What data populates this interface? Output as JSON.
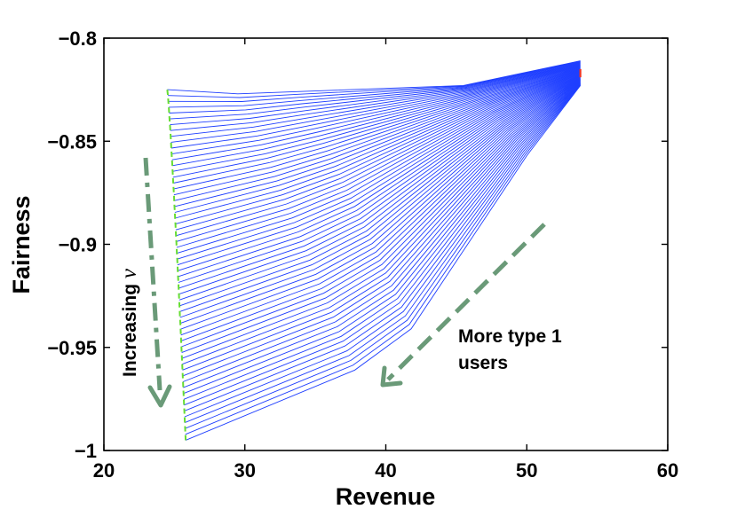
{
  "chart_data": {
    "type": "line",
    "title": "",
    "xlabel": "Revenue",
    "ylabel": "Fairness",
    "xlim": [
      20,
      60
    ],
    "ylim": [
      -1,
      -0.8
    ],
    "xticks": [
      20,
      30,
      40,
      50,
      60
    ],
    "yticks": [
      -0.8,
      -0.85,
      -0.9,
      -0.95,
      -1
    ],
    "xtick_labels": [
      "20",
      "30",
      "40",
      "50",
      "60"
    ],
    "ytick_labels": [
      "−0.8",
      "−0.85",
      "−0.9",
      "−0.95",
      "−1"
    ],
    "grid": false,
    "series_color": "#1f3fff",
    "left_boundary_color": "#66dd33",
    "right_boundary_color": "#ee3322",
    "annotation_color": "#6a9a78",
    "curve_family": {
      "count": 61,
      "left_x_range": [
        24.5,
        25.8
      ],
      "left_y_range": [
        -0.825,
        -0.995
      ],
      "right_x": 53.8,
      "right_y_range": [
        -0.811,
        -0.823
      ],
      "knee_x_range": [
        29.5,
        37.8
      ],
      "knee_y_range": [
        -0.827,
        -0.961
      ],
      "second_knee_x_range": [
        33.5,
        41.8
      ],
      "second_knee_y_range": [
        -0.826,
        -0.941
      ]
    },
    "annotations": {
      "nu_label_prefix": "Increasing ",
      "nu_symbol": "ν",
      "type1_label_line1": "More type 1",
      "type1_label_line2": "users"
    }
  }
}
